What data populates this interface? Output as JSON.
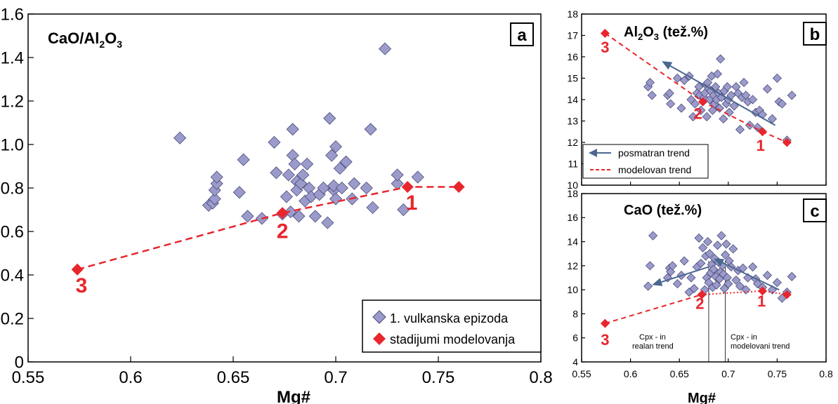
{
  "colors": {
    "diamond_fill": "#9b9bcb",
    "diamond_stroke": "#4a4a7a",
    "model_red": "#e8262d",
    "trend_blue": "#4a6790",
    "axis": "#000000"
  },
  "chart_data": [
    {
      "id": "a",
      "type": "scatter",
      "panel_label": "a",
      "title_parts": [
        "CaO/Al",
        "2",
        "O",
        "3"
      ],
      "xlabel": "Mg#",
      "xlim": [
        0.55,
        0.8
      ],
      "ylim": [
        0,
        1.6
      ],
      "xticks": [
        "0.55",
        "0.6",
        "0.65",
        "0.7",
        "0.75",
        "0.8"
      ],
      "yticks": [
        "0",
        "0.2",
        "0.4",
        "0.6",
        "0.8",
        "1.0",
        "1.2",
        "1.4",
        "1.6"
      ],
      "legend": {
        "position": "bottom-right",
        "entries": [
          "1. vulkanska epizoda",
          "stadijumi modelovanja"
        ]
      },
      "series": [
        {
          "name": "1. vulkanska epizoda",
          "marker": "diamond",
          "x": [
            0.624,
            0.638,
            0.64,
            0.641,
            0.641,
            0.642,
            0.642,
            0.653,
            0.655,
            0.657,
            0.664,
            0.67,
            0.671,
            0.674,
            0.676,
            0.677,
            0.678,
            0.679,
            0.679,
            0.68,
            0.681,
            0.681,
            0.682,
            0.683,
            0.684,
            0.685,
            0.686,
            0.687,
            0.688,
            0.69,
            0.692,
            0.694,
            0.696,
            0.697,
            0.698,
            0.699,
            0.699,
            0.7,
            0.7,
            0.702,
            0.703,
            0.705,
            0.708,
            0.709,
            0.715,
            0.717,
            0.718,
            0.724,
            0.73,
            0.73,
            0.733,
            0.74
          ],
          "y": [
            1.03,
            0.72,
            0.73,
            0.75,
            0.79,
            0.82,
            0.85,
            0.78,
            0.93,
            0.67,
            0.66,
            1.01,
            0.87,
            0.68,
            0.76,
            0.86,
            0.69,
            1.07,
            0.95,
            0.91,
            0.83,
            0.79,
            0.67,
            0.82,
            0.86,
            0.74,
            0.91,
            0.8,
            0.76,
            0.67,
            0.77,
            0.8,
            0.64,
            1.12,
            0.95,
            0.79,
            0.81,
            0.75,
            0.99,
            0.89,
            0.8,
            0.92,
            0.75,
            0.82,
            0.8,
            1.07,
            0.71,
            1.44,
            0.82,
            0.86,
            0.7,
            0.85
          ]
        },
        {
          "name": "stadijumi modelovanja",
          "marker": "diamond",
          "x": [
            0.574,
            0.674,
            0.735,
            0.76
          ],
          "y": [
            0.425,
            0.685,
            0.805,
            0.805
          ]
        }
      ],
      "annotations": [
        {
          "text": "1",
          "x": 0.737,
          "y": 0.7
        },
        {
          "text": "2",
          "x": 0.674,
          "y": 0.57
        },
        {
          "text": "3",
          "x": 0.576,
          "y": 0.32
        }
      ]
    },
    {
      "id": "b",
      "type": "scatter",
      "panel_label": "b",
      "title_parts": [
        "Al",
        "2",
        "O",
        "3",
        " (tež.%)"
      ],
      "xlim": [
        0.55,
        0.8
      ],
      "ylim": [
        10,
        18
      ],
      "yticks": [
        "10",
        "11",
        "12",
        "13",
        "14",
        "15",
        "16",
        "17",
        "18"
      ],
      "legend": {
        "position": "bottom-left",
        "entries": [
          "posmatran trend",
          "modelovan trend"
        ]
      },
      "series": [
        {
          "name": "1. vulkanska epizoda",
          "marker": "diamond",
          "x": [
            0.618,
            0.62,
            0.622,
            0.638,
            0.64,
            0.641,
            0.648,
            0.652,
            0.655,
            0.66,
            0.662,
            0.664,
            0.666,
            0.668,
            0.67,
            0.671,
            0.672,
            0.674,
            0.675,
            0.676,
            0.677,
            0.678,
            0.679,
            0.68,
            0.681,
            0.682,
            0.683,
            0.684,
            0.685,
            0.686,
            0.687,
            0.688,
            0.689,
            0.69,
            0.691,
            0.692,
            0.693,
            0.695,
            0.696,
            0.698,
            0.699,
            0.7,
            0.701,
            0.703,
            0.706,
            0.708,
            0.71,
            0.712,
            0.714,
            0.716,
            0.718,
            0.72,
            0.722,
            0.725,
            0.728,
            0.73,
            0.732,
            0.735,
            0.74,
            0.745,
            0.75,
            0.752,
            0.755,
            0.76,
            0.765
          ],
          "y": [
            14.6,
            14.8,
            14.2,
            14.2,
            14.3,
            13.8,
            15.0,
            13.6,
            14.9,
            15.1,
            14.0,
            13.2,
            13.8,
            14.3,
            14.6,
            14.2,
            13.5,
            13.9,
            14.1,
            14.3,
            14.7,
            13.2,
            14.8,
            14.5,
            14.0,
            14.4,
            15.1,
            13.5,
            14.2,
            13.8,
            14.6,
            14.0,
            15.2,
            14.3,
            13.6,
            15.9,
            14.1,
            13.1,
            14.4,
            13.8,
            14.6,
            14.0,
            13.4,
            14.2,
            13.7,
            14.6,
            14.3,
            12.6,
            14.1,
            14.8,
            14.2,
            13.9,
            12.8,
            14.0,
            13.4,
            12.7,
            13.5,
            13.3,
            14.5,
            13.1,
            15.0,
            13.9,
            13.8,
            12.1,
            14.2
          ]
        },
        {
          "name": "stadijumi modelovanja",
          "marker": "diamond",
          "x": [
            0.574,
            0.674,
            0.735,
            0.76
          ],
          "y": [
            17.1,
            13.9,
            12.5,
            12.0
          ]
        }
      ],
      "trend_arrow": {
        "from": [
          0.748,
          12.8
        ],
        "to": [
          0.632,
          15.8
        ]
      },
      "annotations": [
        {
          "text": "1",
          "x": 0.733,
          "y": 11.6
        },
        {
          "text": "2",
          "x": 0.669,
          "y": 13.1
        },
        {
          "text": "3",
          "x": 0.574,
          "y": 16.2
        }
      ]
    },
    {
      "id": "c",
      "type": "scatter",
      "panel_label": "c",
      "title_parts": [
        "CaO (tež.%)"
      ],
      "xlabel": "Mg#",
      "xlim": [
        0.55,
        0.8
      ],
      "ylim": [
        4,
        18
      ],
      "xticks": [
        "0.55",
        "0.6",
        "0.65",
        "0.7",
        "0.75",
        "0.8"
      ],
      "yticks": [
        "4",
        "6",
        "8",
        "10",
        "12",
        "14",
        "16",
        "18"
      ],
      "series": [
        {
          "name": "1. vulkanska epizoda",
          "marker": "diamond",
          "x": [
            0.618,
            0.62,
            0.623,
            0.638,
            0.64,
            0.641,
            0.643,
            0.648,
            0.652,
            0.655,
            0.66,
            0.662,
            0.665,
            0.668,
            0.67,
            0.672,
            0.674,
            0.676,
            0.677,
            0.678,
            0.679,
            0.68,
            0.681,
            0.682,
            0.683,
            0.684,
            0.685,
            0.686,
            0.687,
            0.688,
            0.689,
            0.69,
            0.691,
            0.692,
            0.693,
            0.694,
            0.695,
            0.696,
            0.697,
            0.698,
            0.699,
            0.7,
            0.701,
            0.703,
            0.705,
            0.708,
            0.71,
            0.712,
            0.715,
            0.718,
            0.72,
            0.725,
            0.728,
            0.73,
            0.735,
            0.74,
            0.745,
            0.75,
            0.755,
            0.76,
            0.765
          ],
          "y": [
            10.3,
            12.0,
            14.5,
            11.0,
            11.8,
            11.5,
            12.0,
            10.5,
            11.2,
            12.4,
            9.8,
            11.0,
            10.1,
            11.9,
            14.3,
            12.2,
            13.5,
            10.0,
            12.8,
            11.0,
            14.0,
            10.6,
            13.0,
            11.4,
            12.1,
            10.2,
            11.7,
            12.6,
            11.1,
            10.4,
            13.7,
            12.3,
            10.9,
            11.5,
            14.5,
            12.0,
            11.3,
            10.1,
            12.9,
            13.8,
            11.0,
            10.5,
            12.4,
            11.9,
            13.4,
            10.8,
            11.6,
            10.3,
            11.8,
            10.0,
            11.0,
            11.9,
            10.9,
            10.5,
            10.2,
            11.2,
            10.0,
            10.6,
            9.3,
            9.8,
            11.1
          ]
        },
        {
          "name": "stadijumi modelovanja",
          "marker": "diamond",
          "x": [
            0.574,
            0.673,
            0.735,
            0.76
          ],
          "y": [
            7.2,
            9.6,
            9.9,
            9.6
          ]
        }
      ],
      "trend_arrows": [
        {
          "from": [
            0.68,
            11.9
          ],
          "to": [
            0.622,
            10.4
          ]
        },
        {
          "from": [
            0.752,
            10.0
          ],
          "to": [
            0.685,
            12.6
          ]
        }
      ],
      "cpx_lines": [
        0.68,
        0.697
      ],
      "annotations": [
        {
          "text": "1",
          "x": 0.734,
          "y": 8.6
        },
        {
          "text": "2",
          "x": 0.671,
          "y": 8.4
        },
        {
          "text": "3",
          "x": 0.574,
          "y": 5.4
        }
      ],
      "notes": [
        {
          "lines": [
            "Cpx - in",
            "realan trend"
          ]
        },
        {
          "lines": [
            "Cpx - in",
            "modelovani trend"
          ]
        }
      ]
    }
  ]
}
